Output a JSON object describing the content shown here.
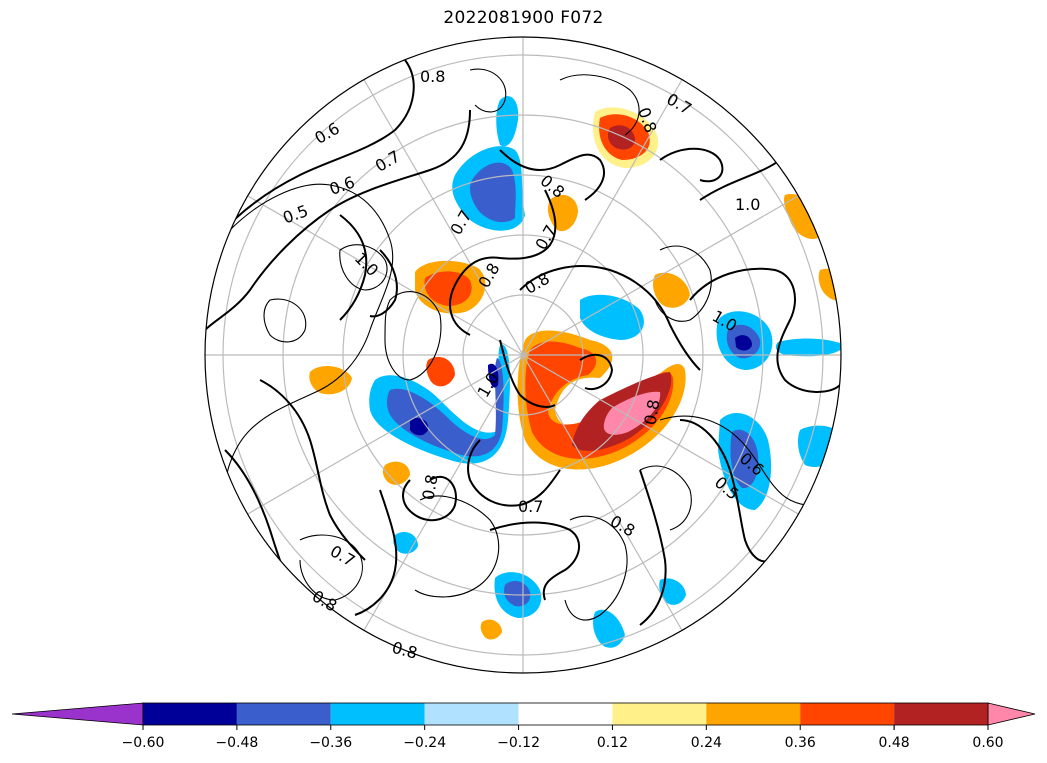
{
  "title": "2022081900 F072",
  "colorbar": {
    "under_color": "#9933cc",
    "over_color": "#ff88aa",
    "bins": [
      {
        "color": "#000099"
      },
      {
        "color": "#3a5fcd"
      },
      {
        "color": "#00bfff"
      },
      {
        "color": "#b0e2ff"
      },
      {
        "color": "#ffffff"
      },
      {
        "color": "#fff08a"
      },
      {
        "color": "#ffa500"
      },
      {
        "color": "#ff4500"
      },
      {
        "color": "#b22222"
      }
    ],
    "ticks": [
      "−0.60",
      "−0.48",
      "−0.36",
      "−0.24",
      "−0.12",
      "0.12",
      "0.24",
      "0.36",
      "0.48",
      "0.60"
    ]
  },
  "contour_labels": [
    {
      "id": "c1",
      "text": "0.8"
    },
    {
      "id": "c2",
      "text": "0.7"
    },
    {
      "id": "c3",
      "text": "0.6"
    },
    {
      "id": "c4",
      "text": "0.7"
    },
    {
      "id": "c5",
      "text": "0.6"
    },
    {
      "id": "c6",
      "text": "0.5"
    },
    {
      "id": "c7",
      "text": "1.0"
    },
    {
      "id": "c8",
      "text": "0.8"
    },
    {
      "id": "c9",
      "text": "1.0"
    },
    {
      "id": "c10",
      "text": "0.7"
    },
    {
      "id": "c11",
      "text": "0.8"
    },
    {
      "id": "c12",
      "text": "0.7"
    },
    {
      "id": "c13",
      "text": "0.8"
    },
    {
      "id": "c14",
      "text": "1.0"
    },
    {
      "id": "c15",
      "text": "0.8"
    },
    {
      "id": "c16",
      "text": "0.6"
    },
    {
      "id": "c17",
      "text": "0.5"
    },
    {
      "id": "c18",
      "text": "0.7"
    },
    {
      "id": "c19",
      "text": "0.8"
    },
    {
      "id": "c20",
      "text": "0.8"
    },
    {
      "id": "c21",
      "text": "0.7"
    },
    {
      "id": "c22",
      "text": "0.8"
    },
    {
      "id": "c23",
      "text": "0.8"
    },
    {
      "id": "c24",
      "text": "1.0"
    },
    {
      "id": "c25",
      "text": "0.8"
    }
  ]
}
